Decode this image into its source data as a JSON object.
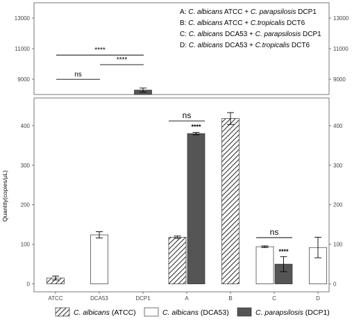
{
  "chart_data": {
    "type": "bar",
    "ylabel": "Quantity(copies/μL)",
    "x_tick_labels": [
      "ATCC",
      "DCA53",
      "DCP1",
      "A",
      "B",
      "C",
      "D"
    ],
    "axis_break": true,
    "upper_axis": {
      "ylim": [
        8000,
        14000
      ],
      "ticks": [
        9000,
        11000,
        13000
      ]
    },
    "lower_axis": {
      "ylim": [
        -20,
        470
      ],
      "ticks": [
        0,
        100,
        200,
        300,
        400
      ]
    },
    "grid": false,
    "legend_placement": "bottom",
    "series": [
      {
        "name": "C. albicans (ATCC)",
        "fill": "hatched",
        "color": "#333333"
      },
      {
        "name": "C. albicans (DCA53)",
        "fill": "white",
        "color": "#ffffff"
      },
      {
        "name": "C. parapsilosis (DCP1)",
        "fill": "solid",
        "color": "#555555"
      }
    ],
    "bars": [
      {
        "category": "ATCC",
        "series": "C. albicans (ATCC)",
        "value": 15,
        "error": 5
      },
      {
        "category": "DCA53",
        "series": "C. albicans (DCA53)",
        "value": 124,
        "error": 8
      },
      {
        "category": "DCP1",
        "series": "C. parapsilosis (DCP1)",
        "value": 8290,
        "error": 130
      },
      {
        "category": "A",
        "series": "C. albicans (ATCC)",
        "value": 118,
        "error": 3
      },
      {
        "category": "A",
        "series": "C. parapsilosis (DCP1)",
        "value": 380,
        "error": 3
      },
      {
        "category": "B",
        "series": "C. albicans (ATCC)",
        "value": 418,
        "error": 15
      },
      {
        "category": "C",
        "series": "C. albicans (DCA53)",
        "value": 94,
        "error": 2
      },
      {
        "category": "C",
        "series": "C. parapsilosis (DCP1)",
        "value": 50,
        "error": 19
      },
      {
        "category": "D",
        "series": "C. albicans (DCA53)",
        "value": 92,
        "error": 26
      }
    ],
    "significance": [
      {
        "label": "****",
        "from": "ATCC",
        "to": "DCP1",
        "axis": "upper",
        "y": 10580
      },
      {
        "label": "****",
        "from": "DCA53",
        "to": "DCP1",
        "axis": "upper",
        "y": 9950
      },
      {
        "label": "ns",
        "from": "ATCC",
        "to": "DCA53",
        "axis": "upper",
        "y": 8990
      },
      {
        "label": "ns",
        "pair": "A",
        "axis": "lower",
        "y": 412
      },
      {
        "label": "****",
        "over": "A",
        "axis": "lower",
        "y": 392
      },
      {
        "label": "ns",
        "pair": "C",
        "axis": "lower",
        "y": 117
      },
      {
        "label": "****",
        "over": "C",
        "axis": "lower",
        "y": 77
      }
    ],
    "annotation": {
      "prefixes": [
        "A: ",
        "B: ",
        "C: ",
        "D: "
      ],
      "lines": [
        {
          "prefix": "A: ",
          "org1": "C. albicans",
          "strain1": " ATCC + ",
          "org2": "C. parapsilosis",
          "strain2": " DCP1"
        },
        {
          "prefix": "B: ",
          "org1": "C. albicans",
          "strain1": " ATCC + ",
          "org2": "C.tropicalis",
          "strain2": " DCT6"
        },
        {
          "prefix": "C: ",
          "org1": "C. albicans",
          "strain1": " DCA53 + ",
          "org2": "C. parapsilosis",
          "strain2": " DCP1"
        },
        {
          "prefix": "D: ",
          "org1": "C. albicans",
          "strain1": " DCA53 + ",
          "org2": "C.tropicalis",
          "strain2": " DCT6"
        }
      ]
    },
    "legend": [
      {
        "name_italic": "C. albicans",
        "name_rest": " (ATCC)",
        "fill": "hatched"
      },
      {
        "name_italic": "C. albicans",
        "name_rest": " (DCA53)",
        "fill": "white"
      },
      {
        "name_italic": "C. parapsilosis",
        "name_rest": " (DCP1)",
        "fill": "solid"
      }
    ]
  }
}
